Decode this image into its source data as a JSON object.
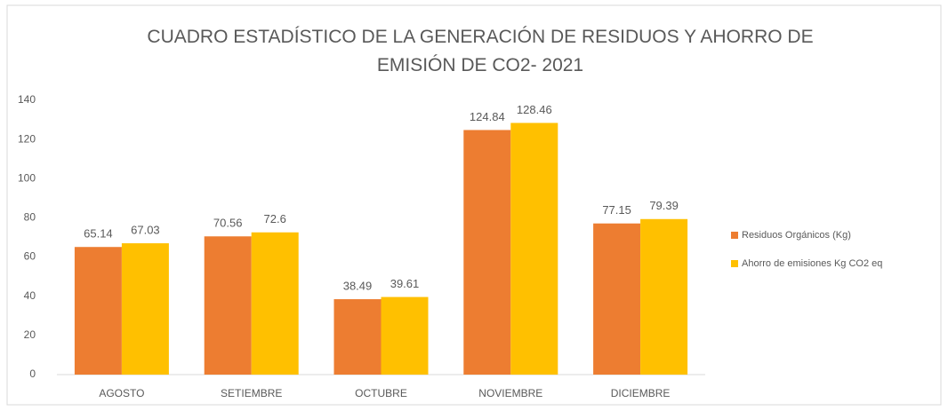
{
  "chart_data": {
    "type": "bar",
    "title": "CUADRO ESTADÍSTICO DE LA GENERACIÓN DE RESIDUOS Y AHORRO DE EMISIÓN DE CO2- 2021",
    "categories": [
      "AGOSTO",
      "SETIEMBRE",
      "OCTUBRE",
      "NOVIEMBRE",
      "DICIEMBRE"
    ],
    "series": [
      {
        "name": "Residuos Orgánicos (Kg)",
        "color": "#ed7d31",
        "values": [
          65.14,
          70.56,
          38.49,
          124.84,
          77.15
        ]
      },
      {
        "name": "Ahorro de emisiones Kg CO2 eq",
        "color": "#ffc000",
        "values": [
          67.03,
          72.6,
          39.61,
          128.46,
          79.39
        ]
      }
    ],
    "ylim": [
      0,
      140
    ],
    "yticks": [
      0,
      20,
      40,
      60,
      80,
      100,
      120,
      140
    ],
    "grid": false,
    "legend": "right"
  }
}
